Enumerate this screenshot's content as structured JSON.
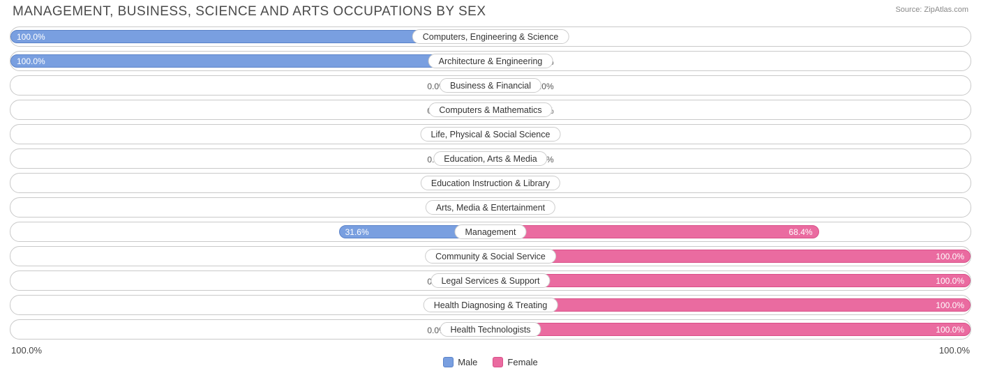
{
  "header": {
    "title": "MANAGEMENT, BUSINESS, SCIENCE AND ARTS OCCUPATIONS BY SEX",
    "source": "Source: ZipAtlas.com"
  },
  "chart": {
    "type": "diverging-bar",
    "male_color": "#799fe0",
    "male_border": "#5a82c8",
    "female_color": "#ea6ba0",
    "female_border": "#d94f88",
    "row_border": "#c9c9c9",
    "label_border": "#cccccc",
    "background": "#ffffff",
    "min_bar_pct": 8.0,
    "axis_left": "100.0%",
    "axis_right": "100.0%",
    "legend": {
      "male": "Male",
      "female": "Female"
    },
    "rows": [
      {
        "label": "Computers, Engineering & Science",
        "male": 100.0,
        "female": 0.0
      },
      {
        "label": "Architecture & Engineering",
        "male": 100.0,
        "female": 0.0
      },
      {
        "label": "Business & Financial",
        "male": 0.0,
        "female": 0.0
      },
      {
        "label": "Computers & Mathematics",
        "male": 0.0,
        "female": 0.0
      },
      {
        "label": "Life, Physical & Social Science",
        "male": 0.0,
        "female": 0.0
      },
      {
        "label": "Education, Arts & Media",
        "male": 0.0,
        "female": 0.0
      },
      {
        "label": "Education Instruction & Library",
        "male": 0.0,
        "female": 0.0
      },
      {
        "label": "Arts, Media & Entertainment",
        "male": 0.0,
        "female": 0.0
      },
      {
        "label": "Management",
        "male": 31.6,
        "female": 68.4
      },
      {
        "label": "Community & Social Service",
        "male": 0.0,
        "female": 100.0
      },
      {
        "label": "Legal Services & Support",
        "male": 0.0,
        "female": 100.0
      },
      {
        "label": "Health Diagnosing & Treating",
        "male": 0.0,
        "female": 100.0
      },
      {
        "label": "Health Technologists",
        "male": 0.0,
        "female": 100.0
      }
    ]
  }
}
